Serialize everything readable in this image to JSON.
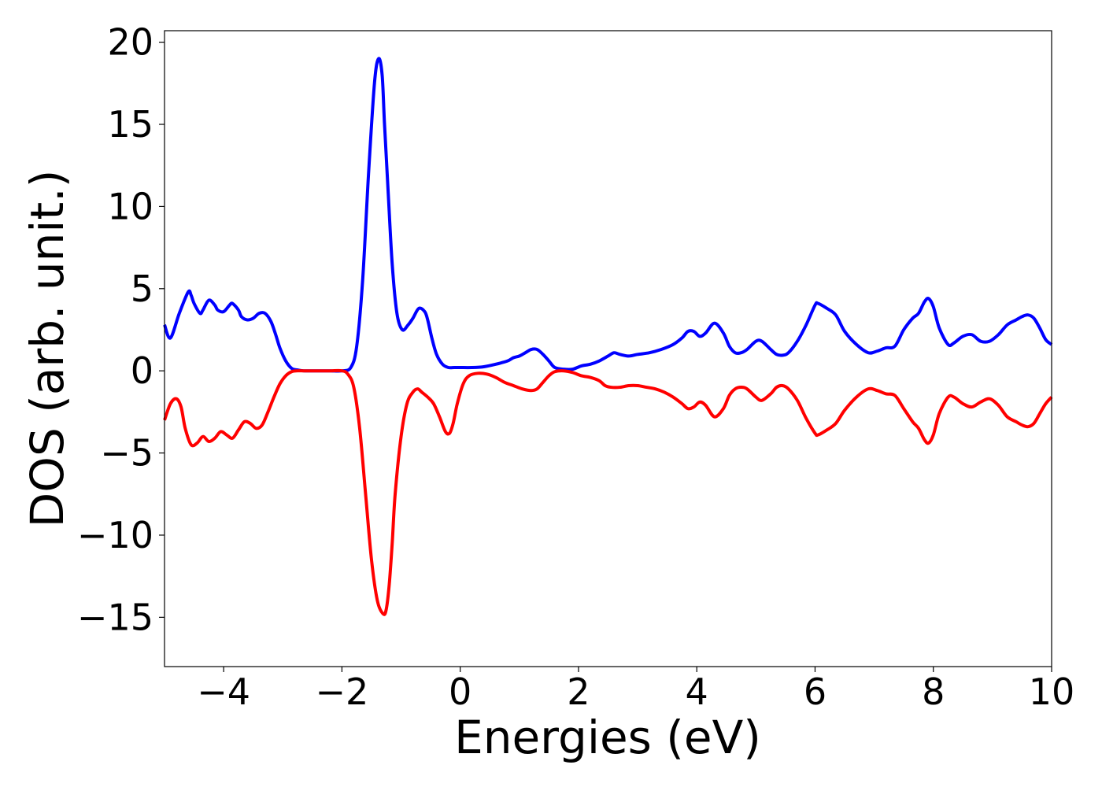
{
  "chart_data": {
    "type": "line",
    "title": "",
    "xlabel": "Energies (eV)",
    "ylabel": "DOS (arb. unit.)",
    "xlim": [
      -5,
      10
    ],
    "ylim": [
      -18,
      20.7
    ],
    "xticks": [
      -4,
      -2,
      0,
      2,
      4,
      6,
      8,
      10
    ],
    "xtick_labels": [
      "−4",
      "−2",
      "0",
      "2",
      "4",
      "6",
      "8",
      "10"
    ],
    "yticks": [
      -15,
      -10,
      -5,
      0,
      5,
      10,
      15,
      20
    ],
    "ytick_labels": [
      "−15",
      "−10",
      "−5",
      "0",
      "5",
      "10",
      "15",
      "20"
    ],
    "grid": false,
    "legend": "none",
    "series": [
      {
        "color": "#0000ff",
        "x": [
          -5.0,
          -4.9,
          -4.75,
          -4.6,
          -4.55,
          -4.5,
          -4.4,
          -4.35,
          -4.25,
          -4.15,
          -4.1,
          -4.0,
          -3.9,
          -3.85,
          -3.75,
          -3.7,
          -3.6,
          -3.5,
          -3.4,
          -3.3,
          -3.2,
          -3.12,
          -3.05,
          -2.95,
          -2.85,
          -2.75,
          -2.65,
          -2.55,
          -2.4,
          -2.2,
          -2.0,
          -1.85,
          -1.75,
          -1.65,
          -1.55,
          -1.45,
          -1.38,
          -1.32,
          -1.28,
          -1.22,
          -1.15,
          -1.07,
          -0.98,
          -0.88,
          -0.8,
          -0.7,
          -0.6,
          -0.55,
          -0.48,
          -0.4,
          -0.3,
          -0.2,
          -0.1,
          0.0,
          0.2,
          0.4,
          0.6,
          0.8,
          0.9,
          1.0,
          1.1,
          1.2,
          1.3,
          1.4,
          1.5,
          1.6,
          1.75,
          1.9,
          2.05,
          2.2,
          2.35,
          2.5,
          2.6,
          2.7,
          2.85,
          3.0,
          3.2,
          3.4,
          3.6,
          3.75,
          3.85,
          3.95,
          4.05,
          4.15,
          4.3,
          4.45,
          4.55,
          4.65,
          4.75,
          4.85,
          5.0,
          5.1,
          5.25,
          5.35,
          5.45,
          5.55,
          5.7,
          5.85,
          6.0,
          6.05,
          6.2,
          6.35,
          6.5,
          6.7,
          6.9,
          7.05,
          7.2,
          7.35,
          7.5,
          7.65,
          7.75,
          7.85,
          7.92,
          8.0,
          8.1,
          8.25,
          8.35,
          8.5,
          8.65,
          8.8,
          8.95,
          9.1,
          9.25,
          9.4,
          9.5,
          9.6,
          9.7,
          9.8,
          9.9,
          10.0
        ],
        "y": [
          2.8,
          2.0,
          3.5,
          4.8,
          4.6,
          4.1,
          3.5,
          3.7,
          4.3,
          4.0,
          3.7,
          3.6,
          4.0,
          4.1,
          3.7,
          3.3,
          3.1,
          3.2,
          3.5,
          3.5,
          3.0,
          2.2,
          1.4,
          0.6,
          0.15,
          0.05,
          0.0,
          0.0,
          0.0,
          0.0,
          0.0,
          0.2,
          1.5,
          5.5,
          12.0,
          17.5,
          19.0,
          18.0,
          15.0,
          11.0,
          6.5,
          3.5,
          2.5,
          2.8,
          3.2,
          3.8,
          3.6,
          3.1,
          2.0,
          1.0,
          0.4,
          0.2,
          0.2,
          0.2,
          0.2,
          0.25,
          0.4,
          0.6,
          0.8,
          0.9,
          1.1,
          1.3,
          1.3,
          1.0,
          0.6,
          0.2,
          0.1,
          0.1,
          0.3,
          0.4,
          0.6,
          0.9,
          1.1,
          1.0,
          0.9,
          1.0,
          1.1,
          1.3,
          1.6,
          2.0,
          2.4,
          2.4,
          2.1,
          2.3,
          2.9,
          2.3,
          1.5,
          1.1,
          1.1,
          1.3,
          1.8,
          1.8,
          1.3,
          1.0,
          0.95,
          1.1,
          1.8,
          2.8,
          4.0,
          4.1,
          3.8,
          3.4,
          2.4,
          1.6,
          1.1,
          1.2,
          1.4,
          1.5,
          2.5,
          3.2,
          3.5,
          4.2,
          4.4,
          3.9,
          2.6,
          1.6,
          1.7,
          2.1,
          2.2,
          1.8,
          1.8,
          2.2,
          2.8,
          3.1,
          3.3,
          3.4,
          3.2,
          2.6,
          1.9,
          1.6
        ]
      },
      {
        "color": "#ff0000",
        "x": [
          -5.0,
          -4.9,
          -4.8,
          -4.72,
          -4.65,
          -4.55,
          -4.45,
          -4.35,
          -4.25,
          -4.15,
          -4.05,
          -3.95,
          -3.85,
          -3.75,
          -3.65,
          -3.55,
          -3.45,
          -3.35,
          -3.25,
          -3.15,
          -3.05,
          -2.95,
          -2.85,
          -2.75,
          -2.65,
          -2.55,
          -2.4,
          -2.2,
          -2.0,
          -1.9,
          -1.8,
          -1.7,
          -1.6,
          -1.5,
          -1.4,
          -1.3,
          -1.25,
          -1.2,
          -1.15,
          -1.1,
          -1.0,
          -0.9,
          -0.8,
          -0.72,
          -0.65,
          -0.55,
          -0.45,
          -0.35,
          -0.25,
          -0.18,
          -0.12,
          -0.05,
          0.05,
          0.15,
          0.3,
          0.45,
          0.6,
          0.75,
          0.9,
          1.05,
          1.2,
          1.3,
          1.4,
          1.5,
          1.6,
          1.75,
          1.9,
          2.05,
          2.2,
          2.35,
          2.45,
          2.55,
          2.7,
          2.85,
          3.0,
          3.15,
          3.3,
          3.45,
          3.6,
          3.75,
          3.85,
          3.95,
          4.05,
          4.15,
          4.3,
          4.45,
          4.55,
          4.65,
          4.75,
          4.85,
          5.0,
          5.1,
          5.25,
          5.35,
          5.45,
          5.55,
          5.7,
          5.85,
          6.0,
          6.05,
          6.2,
          6.35,
          6.5,
          6.7,
          6.9,
          7.05,
          7.2,
          7.35,
          7.5,
          7.65,
          7.75,
          7.85,
          7.92,
          8.0,
          8.1,
          8.25,
          8.35,
          8.5,
          8.65,
          8.8,
          8.95,
          9.1,
          9.25,
          9.4,
          9.5,
          9.6,
          9.7,
          9.8,
          9.9,
          10.0
        ],
        "y": [
          -3.0,
          -2.0,
          -1.7,
          -2.2,
          -3.5,
          -4.5,
          -4.4,
          -4.0,
          -4.3,
          -4.1,
          -3.7,
          -3.9,
          -4.1,
          -3.6,
          -3.1,
          -3.2,
          -3.5,
          -3.3,
          -2.5,
          -1.6,
          -0.8,
          -0.3,
          -0.05,
          0.0,
          0.0,
          0.0,
          0.0,
          0.0,
          0.0,
          -0.2,
          -1.0,
          -3.5,
          -7.5,
          -11.5,
          -14.0,
          -14.8,
          -14.5,
          -13.0,
          -10.5,
          -7.5,
          -4.0,
          -2.0,
          -1.3,
          -1.1,
          -1.3,
          -1.6,
          -2.0,
          -2.8,
          -3.7,
          -3.8,
          -3.2,
          -2.0,
          -0.8,
          -0.3,
          -0.15,
          -0.2,
          -0.4,
          -0.7,
          -0.9,
          -1.1,
          -1.2,
          -1.1,
          -0.7,
          -0.3,
          -0.05,
          0.0,
          -0.1,
          -0.3,
          -0.4,
          -0.6,
          -0.9,
          -1.0,
          -1.0,
          -0.9,
          -0.9,
          -1.0,
          -1.1,
          -1.3,
          -1.6,
          -2.0,
          -2.3,
          -2.2,
          -1.9,
          -2.1,
          -2.8,
          -2.3,
          -1.5,
          -1.1,
          -1.0,
          -1.1,
          -1.6,
          -1.8,
          -1.4,
          -1.0,
          -0.9,
          -1.1,
          -1.8,
          -2.9,
          -3.8,
          -3.9,
          -3.6,
          -3.2,
          -2.4,
          -1.6,
          -1.1,
          -1.2,
          -1.4,
          -1.5,
          -2.3,
          -3.1,
          -3.5,
          -4.2,
          -4.4,
          -3.9,
          -2.6,
          -1.6,
          -1.6,
          -2.0,
          -2.2,
          -1.9,
          -1.7,
          -2.1,
          -2.8,
          -3.1,
          -3.3,
          -3.4,
          -3.2,
          -2.6,
          -2.0,
          -1.6
        ]
      }
    ]
  }
}
